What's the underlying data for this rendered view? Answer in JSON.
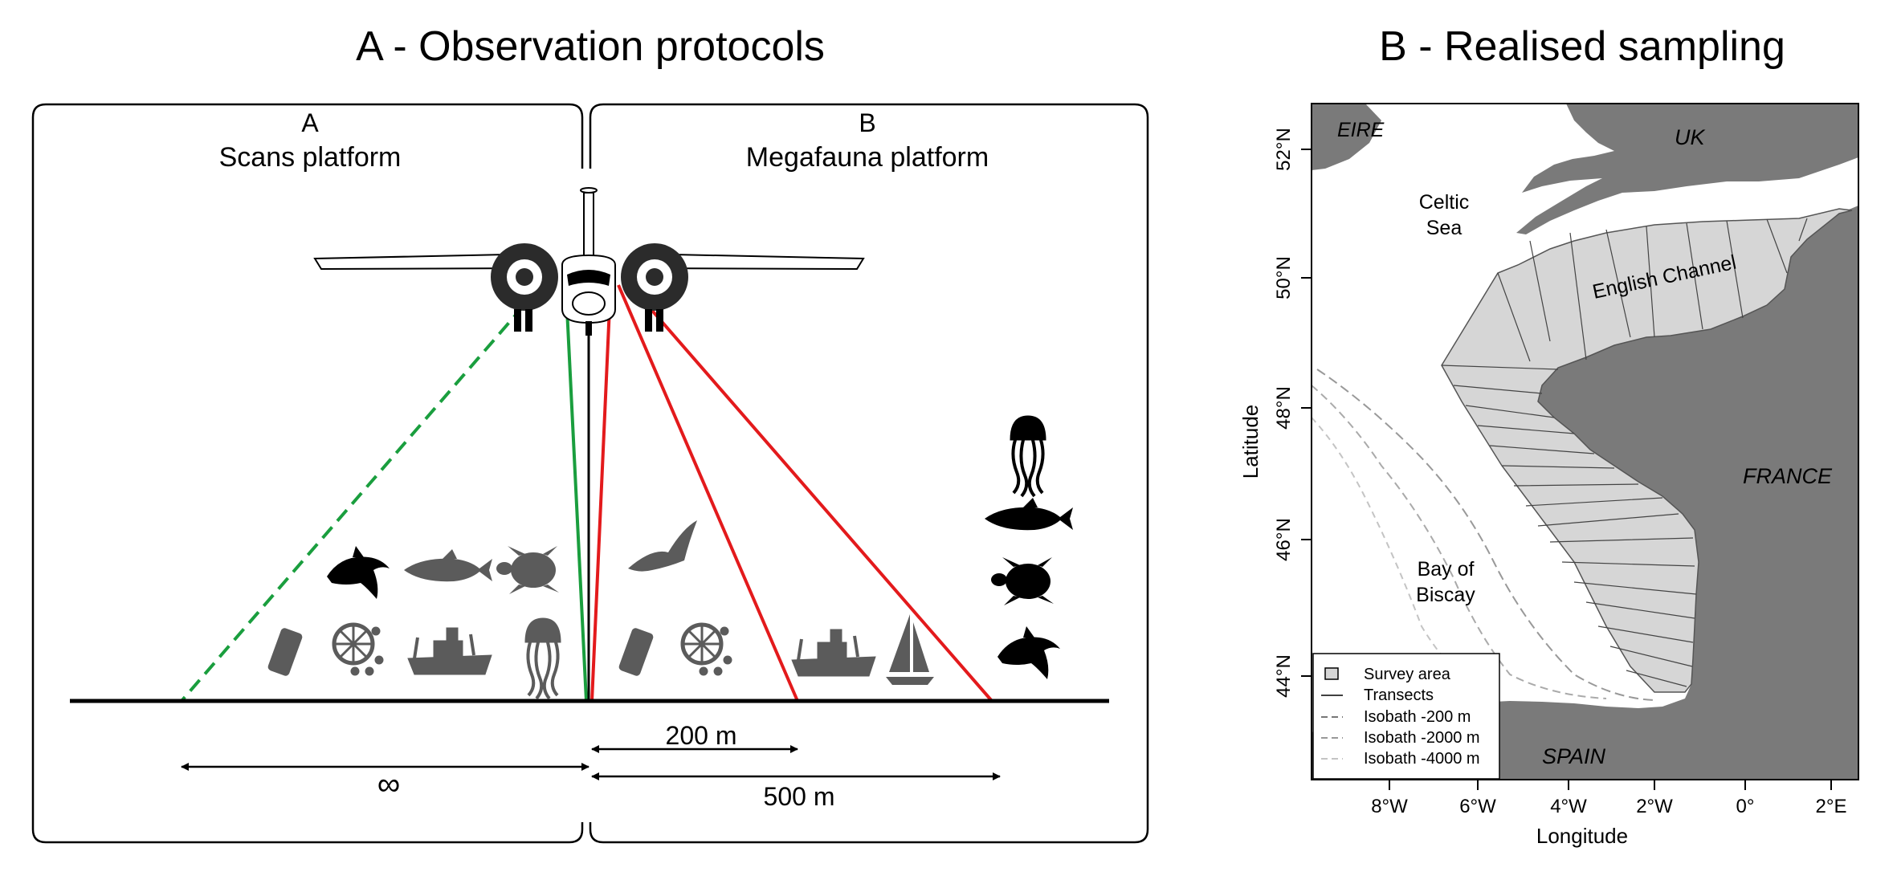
{
  "panel_a": {
    "title": "A - Observation protocols",
    "left_box": {
      "letter": "A",
      "name": "Scans platform"
    },
    "right_box": {
      "letter": "B",
      "name": "Megafauna platform"
    },
    "distances": {
      "infinity": "∞",
      "d200": "200 m",
      "d500": "500 m"
    },
    "colors": {
      "scans": "#1a9e3e",
      "megafauna": "#e31a1c",
      "silhouette": "#5b5b5b"
    },
    "icons_left_upper": [
      "dolphin-icon",
      "tuna-icon",
      "turtle-icon"
    ],
    "icons_left_lower": [
      "can-icon",
      "net-icon",
      "trawler-icon",
      "jellyfish-icon"
    ],
    "icons_right_lower": [
      "can-icon",
      "net-icon",
      "trawler-icon",
      "sailboat-icon"
    ],
    "icons_right_column": [
      "jellyfish-icon",
      "tuna-icon",
      "turtle-icon",
      "dolphin-icon"
    ]
  },
  "panel_b": {
    "title": "B - Realised sampling",
    "ylabel": "Latitude",
    "xlabel": "Longitude",
    "lat_ticks": [
      "44°N",
      "46°N",
      "48°N",
      "50°N",
      "52°N"
    ],
    "lon_ticks": [
      "8°W",
      "6°W",
      "4°W",
      "2°W",
      "0°",
      "2°E"
    ],
    "places": {
      "eire": "EIRE",
      "uk": "UK",
      "france": "FRANCE",
      "spain": "SPAIN",
      "celtic_1": "Celtic",
      "celtic_2": "Sea",
      "channel": "English Channel",
      "biscay_1": "Bay of",
      "biscay_2": "Biscay"
    },
    "legend": {
      "survey": "Survey area",
      "transects": "Transects",
      "iso200": "Isobath -200 m",
      "iso2000": "Isobath -2000 m",
      "iso4000": "Isobath -4000 m"
    },
    "colors": {
      "land": "#7a7a7a",
      "survey": "#d6d6d6"
    }
  }
}
